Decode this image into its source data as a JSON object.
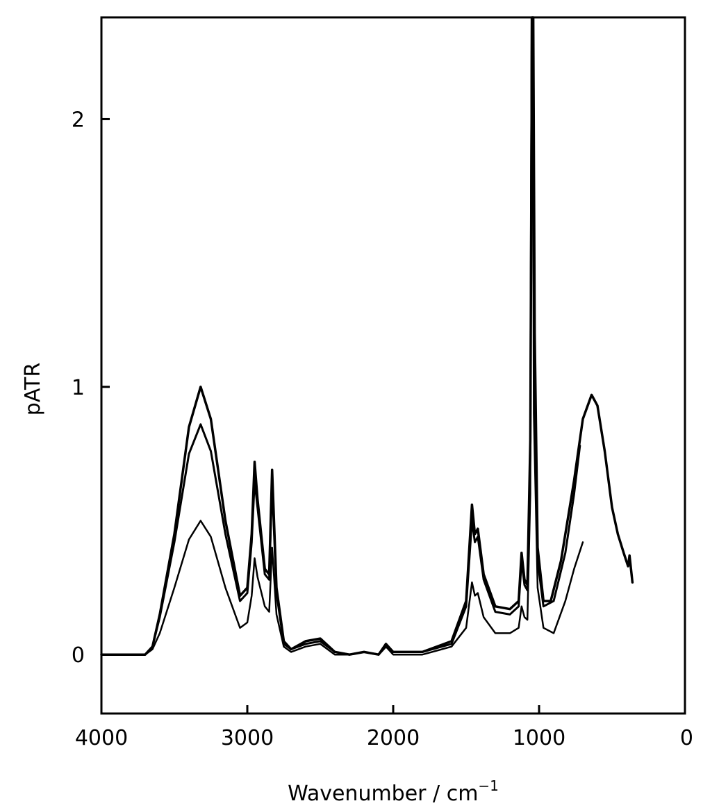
{
  "chart_data": {
    "type": "line",
    "xlabel": "Wavenumber / cm",
    "xlabel_superscript": "−1",
    "ylabel": "pATR",
    "xlim": [
      4000,
      0
    ],
    "ylim": [
      -0.22,
      2.38
    ],
    "x_reversed": true,
    "grid": false,
    "legend": "none",
    "xticks": [
      {
        "value": 4000,
        "label": "4000"
      },
      {
        "value": 3000,
        "label": "3000"
      },
      {
        "value": 2000,
        "label": "2000"
      },
      {
        "value": 1000,
        "label": "1000"
      },
      {
        "value": 0,
        "label": "0"
      }
    ],
    "yticks": [
      {
        "value": 0,
        "label": "0"
      },
      {
        "value": 1,
        "label": "1"
      },
      {
        "value": 2,
        "label": "2"
      }
    ],
    "series": [
      {
        "stroke": "#000000",
        "points": [
          [
            4000,
            0
          ],
          [
            3700,
            0
          ],
          [
            3650,
            0.03
          ],
          [
            3600,
            0.15
          ],
          [
            3500,
            0.45
          ],
          [
            3400,
            0.85
          ],
          [
            3320,
            1.0
          ],
          [
            3250,
            0.88
          ],
          [
            3150,
            0.5
          ],
          [
            3050,
            0.22
          ],
          [
            3000,
            0.25
          ],
          [
            2970,
            0.45
          ],
          [
            2950,
            0.72
          ],
          [
            2930,
            0.58
          ],
          [
            2880,
            0.32
          ],
          [
            2850,
            0.3
          ],
          [
            2830,
            0.69
          ],
          [
            2800,
            0.25
          ],
          [
            2750,
            0.05
          ],
          [
            2700,
            0.02
          ],
          [
            2600,
            0.05
          ],
          [
            2500,
            0.06
          ],
          [
            2400,
            0.01
          ],
          [
            2300,
            0.0
          ],
          [
            2200,
            0.01
          ],
          [
            2100,
            0.0
          ],
          [
            2050,
            0.04
          ],
          [
            2000,
            0.01
          ],
          [
            1800,
            0.01
          ],
          [
            1600,
            0.05
          ],
          [
            1500,
            0.2
          ],
          [
            1460,
            0.56
          ],
          [
            1440,
            0.45
          ],
          [
            1420,
            0.47
          ],
          [
            1380,
            0.3
          ],
          [
            1300,
            0.18
          ],
          [
            1200,
            0.17
          ],
          [
            1140,
            0.2
          ],
          [
            1120,
            0.38
          ],
          [
            1100,
            0.28
          ],
          [
            1080,
            0.26
          ],
          [
            1060,
            0.8
          ],
          [
            1048,
            2.38
          ],
          [
            1040,
            2.38
          ],
          [
            1030,
            1.2
          ],
          [
            1010,
            0.4
          ],
          [
            970,
            0.2
          ],
          [
            920,
            0.2
          ],
          [
            850,
            0.35
          ],
          [
            760,
            0.65
          ],
          [
            700,
            0.88
          ],
          [
            640,
            0.97
          ],
          [
            600,
            0.93
          ],
          [
            550,
            0.76
          ],
          [
            500,
            0.55
          ],
          [
            460,
            0.45
          ],
          [
            420,
            0.38
          ],
          [
            390,
            0.33
          ],
          [
            380,
            0.37
          ],
          [
            370,
            0.32
          ],
          [
            360,
            0.27
          ]
        ]
      },
      {
        "stroke": "#000000",
        "points": [
          [
            4000,
            0
          ],
          [
            3700,
            0
          ],
          [
            3650,
            0.03
          ],
          [
            3600,
            0.14
          ],
          [
            3500,
            0.42
          ],
          [
            3400,
            0.75
          ],
          [
            3320,
            0.86
          ],
          [
            3250,
            0.76
          ],
          [
            3150,
            0.45
          ],
          [
            3050,
            0.2
          ],
          [
            3000,
            0.23
          ],
          [
            2970,
            0.42
          ],
          [
            2950,
            0.65
          ],
          [
            2930,
            0.55
          ],
          [
            2880,
            0.3
          ],
          [
            2850,
            0.28
          ],
          [
            2830,
            0.64
          ],
          [
            2800,
            0.23
          ],
          [
            2750,
            0.04
          ],
          [
            2700,
            0.02
          ],
          [
            2600,
            0.04
          ],
          [
            2500,
            0.05
          ],
          [
            2400,
            0.01
          ],
          [
            2300,
            0.0
          ],
          [
            2200,
            0.01
          ],
          [
            2100,
            0.0
          ],
          [
            2050,
            0.03
          ],
          [
            2000,
            0.01
          ],
          [
            1800,
            0.01
          ],
          [
            1600,
            0.04
          ],
          [
            1500,
            0.18
          ],
          [
            1460,
            0.5
          ],
          [
            1440,
            0.42
          ],
          [
            1420,
            0.44
          ],
          [
            1380,
            0.28
          ],
          [
            1300,
            0.16
          ],
          [
            1200,
            0.15
          ],
          [
            1140,
            0.18
          ],
          [
            1120,
            0.35
          ],
          [
            1100,
            0.26
          ],
          [
            1080,
            0.24
          ],
          [
            1060,
            0.75
          ],
          [
            1050,
            2.38
          ],
          [
            1042,
            2.38
          ],
          [
            1032,
            1.1
          ],
          [
            1010,
            0.35
          ],
          [
            970,
            0.18
          ],
          [
            900,
            0.2
          ],
          [
            820,
            0.38
          ],
          [
            760,
            0.6
          ],
          [
            720,
            0.78
          ]
        ]
      },
      {
        "stroke": "#000000",
        "points": [
          [
            4000,
            0
          ],
          [
            3700,
            0
          ],
          [
            3650,
            0.02
          ],
          [
            3600,
            0.08
          ],
          [
            3500,
            0.25
          ],
          [
            3400,
            0.43
          ],
          [
            3320,
            0.5
          ],
          [
            3250,
            0.44
          ],
          [
            3150,
            0.25
          ],
          [
            3050,
            0.1
          ],
          [
            3000,
            0.12
          ],
          [
            2970,
            0.22
          ],
          [
            2950,
            0.36
          ],
          [
            2930,
            0.29
          ],
          [
            2880,
            0.18
          ],
          [
            2850,
            0.16
          ],
          [
            2830,
            0.4
          ],
          [
            2800,
            0.15
          ],
          [
            2750,
            0.03
          ],
          [
            2700,
            0.01
          ],
          [
            2600,
            0.03
          ],
          [
            2500,
            0.04
          ],
          [
            2400,
            0.0
          ],
          [
            2300,
            0.0
          ],
          [
            2200,
            0.01
          ],
          [
            2100,
            0.0
          ],
          [
            2050,
            0.03
          ],
          [
            2000,
            0.0
          ],
          [
            1800,
            0.0
          ],
          [
            1600,
            0.03
          ],
          [
            1500,
            0.1
          ],
          [
            1460,
            0.27
          ],
          [
            1440,
            0.22
          ],
          [
            1420,
            0.23
          ],
          [
            1380,
            0.14
          ],
          [
            1300,
            0.08
          ],
          [
            1200,
            0.08
          ],
          [
            1140,
            0.1
          ],
          [
            1120,
            0.18
          ],
          [
            1100,
            0.14
          ],
          [
            1080,
            0.13
          ],
          [
            1060,
            0.6
          ],
          [
            1052,
            2.38
          ],
          [
            1045,
            2.38
          ],
          [
            1036,
            0.9
          ],
          [
            1010,
            0.25
          ],
          [
            970,
            0.1
          ],
          [
            900,
            0.08
          ],
          [
            820,
            0.2
          ],
          [
            760,
            0.32
          ],
          [
            700,
            0.42
          ]
        ]
      }
    ]
  }
}
